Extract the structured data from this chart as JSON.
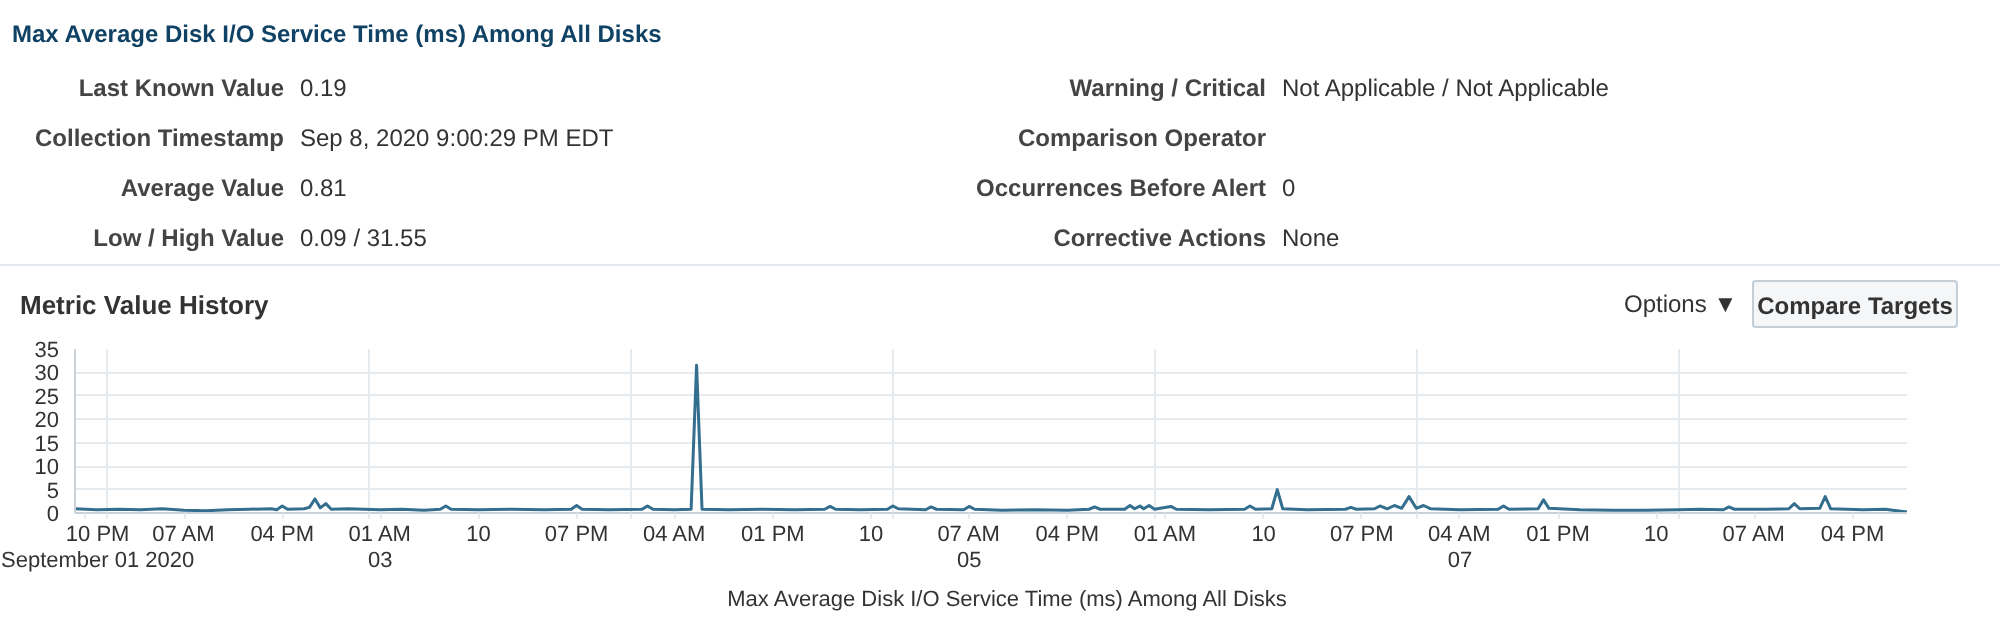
{
  "chart_data": {
    "type": "line",
    "title": "Max Average Disk I/O Service Time (ms) Among All Disks",
    "subtitle": "Metric Value History",
    "annotations": [
      "Last Known Value",
      "0.19",
      "Collection Timestamp",
      "Sep 8, 2020 9:00:29 PM EDT",
      "Average Value",
      "0.81",
      "Low / High Value",
      "0.09  /  31.55",
      "Warning / Critical",
      "Not Applicable  /  Not Applicable",
      "Comparison Operator",
      "Occurrences Before Alert",
      "0",
      "Corrective Actions",
      "None",
      "Options ▼",
      "Compare Targets"
    ],
    "x": [
      "2020-09-01T21:00",
      "2020-09-01T23:00",
      "2020-09-02T01:00",
      "2020-09-02T03:00",
      "2020-09-02T05:00",
      "2020-09-02T07:00",
      "2020-09-02T09:00",
      "2020-09-02T11:00",
      "2020-09-02T13:00",
      "2020-09-02T15:00",
      "2020-09-02T15:30",
      "2020-09-02T16:00",
      "2020-09-02T16:30",
      "2020-09-02T18:00",
      "2020-09-02T18:30",
      "2020-09-02T19:00",
      "2020-09-02T19:30",
      "2020-09-02T20:00",
      "2020-09-02T20:30",
      "2020-09-02T22:00",
      "2020-09-03T01:00",
      "2020-09-03T03:00",
      "2020-09-03T05:00",
      "2020-09-03T06:30",
      "2020-09-03T07:00",
      "2020-09-03T07:30",
      "2020-09-03T10:00",
      "2020-09-03T13:00",
      "2020-09-03T16:00",
      "2020-09-03T18:30",
      "2020-09-03T19:00",
      "2020-09-03T19:30",
      "2020-09-03T22:00",
      "2020-09-04T01:00",
      "2020-09-04T01:30",
      "2020-09-04T02:00",
      "2020-09-04T04:00",
      "2020-09-04T05:30",
      "2020-09-04T06:00",
      "2020-09-04T06:30",
      "2020-09-04T09:00",
      "2020-09-04T12:00",
      "2020-09-04T15:00",
      "2020-09-04T17:45",
      "2020-09-04T18:15",
      "2020-09-04T18:45",
      "2020-09-04T21:00",
      "2020-09-04T23:30",
      "2020-09-05T00:00",
      "2020-09-05T00:30",
      "2020-09-05T03:00",
      "2020-09-05T03:30",
      "2020-09-05T04:00",
      "2020-09-05T06:30",
      "2020-09-05T07:00",
      "2020-09-05T07:30",
      "2020-09-05T10:00",
      "2020-09-05T13:00",
      "2020-09-05T16:00",
      "2020-09-05T18:00",
      "2020-09-05T18:30",
      "2020-09-05T19:00",
      "2020-09-05T21:15",
      "2020-09-05T21:45",
      "2020-09-05T22:10",
      "2020-09-05T22:40",
      "2020-09-05T23:00",
      "2020-09-05T23:30",
      "2020-09-06T00:00",
      "2020-09-06T01:30",
      "2020-09-06T02:00",
      "2020-09-06T05:00",
      "2020-09-06T08:15",
      "2020-09-06T08:45",
      "2020-09-06T09:15",
      "2020-09-06T10:45",
      "2020-09-06T11:15",
      "2020-09-06T11:45",
      "2020-09-06T14:00",
      "2020-09-06T17:30",
      "2020-09-06T18:00",
      "2020-09-06T18:30",
      "2020-09-06T20:10",
      "2020-09-06T20:40",
      "2020-09-06T21:20",
      "2020-09-06T22:00",
      "2020-09-06T22:40",
      "2020-09-06T23:20",
      "2020-09-07T00:00",
      "2020-09-07T00:40",
      "2020-09-07T01:20",
      "2020-09-07T04:00",
      "2020-09-07T07:30",
      "2020-09-07T08:00",
      "2020-09-07T08:30",
      "2020-09-07T11:10",
      "2020-09-07T11:40",
      "2020-09-07T12:10",
      "2020-09-07T15:00",
      "2020-09-07T18:00",
      "2020-09-07T21:00",
      "2020-09-08T00:00",
      "2020-09-08T02:00",
      "2020-09-08T04:10",
      "2020-09-08T04:40",
      "2020-09-08T05:10",
      "2020-09-08T08:00",
      "2020-09-08T10:10",
      "2020-09-08T10:40",
      "2020-09-08T11:10",
      "2020-09-08T13:00",
      "2020-09-08T13:30",
      "2020-09-08T14:00",
      "2020-09-08T17:00",
      "2020-09-08T19:00",
      "2020-09-08T21:00"
    ],
    "series": [
      {
        "name": "Max Average Disk I/O Service Time (ms) Among All Disks",
        "color": "#336e8f",
        "values": [
          0.9,
          0.7,
          0.8,
          0.7,
          0.9,
          0.6,
          0.5,
          0.7,
          0.8,
          0.9,
          0.7,
          1.5,
          0.8,
          0.9,
          1.2,
          3.0,
          1.1,
          2.0,
          0.8,
          0.9,
          0.7,
          0.8,
          0.6,
          0.8,
          1.5,
          0.8,
          0.7,
          0.8,
          0.7,
          0.8,
          1.6,
          0.8,
          0.7,
          0.8,
          1.5,
          0.8,
          0.7,
          0.8,
          31.55,
          0.8,
          0.7,
          0.8,
          0.7,
          0.8,
          1.4,
          0.8,
          0.7,
          0.8,
          1.5,
          0.9,
          0.7,
          1.3,
          0.8,
          0.7,
          1.4,
          0.8,
          0.6,
          0.7,
          0.6,
          0.8,
          1.3,
          0.8,
          0.8,
          1.6,
          0.9,
          1.5,
          0.9,
          1.6,
          0.8,
          1.4,
          0.8,
          0.7,
          0.8,
          1.5,
          0.8,
          0.9,
          5.0,
          0.9,
          0.7,
          0.8,
          1.2,
          0.8,
          0.9,
          1.5,
          0.9,
          1.6,
          1.0,
          3.5,
          1.0,
          1.6,
          0.9,
          0.7,
          0.8,
          1.5,
          0.8,
          0.9,
          2.8,
          1.0,
          0.7,
          0.6,
          0.6,
          0.7,
          0.8,
          0.7,
          1.3,
          0.8,
          0.8,
          0.9,
          2.0,
          0.9,
          1.0,
          3.5,
          0.9,
          0.7,
          0.8,
          0.19
        ]
      }
    ],
    "xlim": [
      "2020-09-01T21:00",
      "2020-09-08T21:00"
    ],
    "xticks": [
      {
        "value": "2020-09-01T22:00",
        "label": "10 PM\nSeptember 01 2020"
      },
      {
        "value": "2020-09-02T07:00",
        "label": "07 AM"
      },
      {
        "value": "2020-09-02T16:00",
        "label": "04 PM"
      },
      {
        "value": "2020-09-03T01:00",
        "label": "01 AM\n03"
      },
      {
        "value": "2020-09-03T10:00",
        "label": "10"
      },
      {
        "value": "2020-09-03T19:00",
        "label": "07 PM"
      },
      {
        "value": "2020-09-04T04:00",
        "label": "04 AM"
      },
      {
        "value": "2020-09-04T13:00",
        "label": "01 PM"
      },
      {
        "value": "2020-09-04T22:00",
        "label": "10"
      },
      {
        "value": "2020-09-05T07:00",
        "label": "07 AM\n05"
      },
      {
        "value": "2020-09-05T16:00",
        "label": "04 PM"
      },
      {
        "value": "2020-09-06T01:00",
        "label": "01 AM"
      },
      {
        "value": "2020-09-06T10:00",
        "label": "10"
      },
      {
        "value": "2020-09-06T19:00",
        "label": "07 PM"
      },
      {
        "value": "2020-09-07T04:00",
        "label": "04 AM\n07"
      },
      {
        "value": "2020-09-07T13:00",
        "label": "01 PM"
      },
      {
        "value": "2020-09-07T22:00",
        "label": "10"
      },
      {
        "value": "2020-09-08T07:00",
        "label": "07 AM"
      },
      {
        "value": "2020-09-08T16:00",
        "label": "04 PM"
      },
      {
        "value": "2020-09-02T00:00",
        "label": null
      },
      {
        "value": "2020-09-03T00:00",
        "label": null
      },
      {
        "value": "2020-09-04T00:00",
        "label": null
      },
      {
        "value": "2020-09-05T00:00",
        "label": null
      },
      {
        "value": "2020-09-06T00:00",
        "label": null
      },
      {
        "value": "2020-09-07T00:00",
        "label": null
      },
      {
        "value": "2020-09-08T00:00",
        "label": null
      }
    ],
    "ylim": [
      0,
      35
    ],
    "yticks": [
      0,
      5,
      10,
      15,
      20,
      25,
      30,
      35
    ],
    "grid": true,
    "legend": "bottom",
    "marker": "none",
    "line_style": "solid"
  }
}
